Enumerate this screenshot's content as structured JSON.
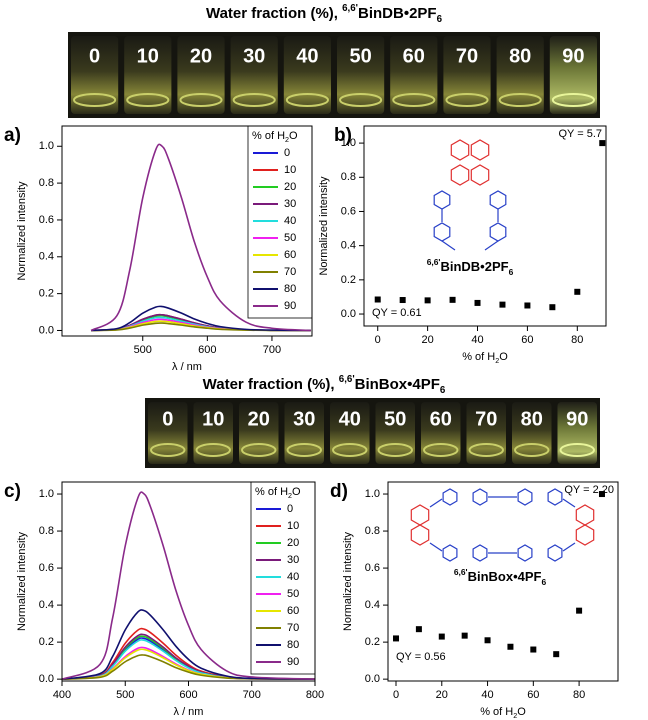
{
  "photos": [
    {
      "title": {
        "prefix": "Water fraction (%), ",
        "sup": "6,6'",
        "name": "BinDB",
        "salt": "•2PF",
        "sub": "6"
      },
      "labels": [
        "0",
        "10",
        "20",
        "30",
        "40",
        "50",
        "60",
        "70",
        "80",
        "90"
      ]
    },
    {
      "title": {
        "prefix": "Water fraction (%), ",
        "sup": "6,6'",
        "name": "BinBox",
        "salt": "•4PF",
        "sub": "6"
      },
      "labels": [
        "0",
        "10",
        "20",
        "30",
        "40",
        "50",
        "60",
        "70",
        "80",
        "90"
      ]
    }
  ],
  "chart_data": [
    {
      "type": "line",
      "panel_label": "a)",
      "xlabel": "λ / nm",
      "ylabel": "Normalized intensity",
      "legend_title": {
        "text": "% of H",
        "sub": "2",
        "end": "O"
      },
      "legend": "upper right",
      "x": [
        420,
        460,
        480,
        500,
        520,
        530,
        540,
        560,
        580,
        600,
        620,
        660,
        700,
        760
      ],
      "xlim": [
        375,
        762
      ],
      "xticks": [
        500,
        600,
        700
      ],
      "ylim": [
        -0.03,
        1.11
      ],
      "yticks": [
        {
          "value": 0,
          "label": "0.0"
        },
        0.2,
        0.4,
        0.6,
        0.8,
        {
          "value": 1,
          "label": "1.0"
        }
      ],
      "series": [
        {
          "name": "0",
          "color": "#1a1ad6",
          "values": [
            0,
            0.006,
            0.026,
            0.058,
            0.078,
            0.08,
            0.074,
            0.058,
            0.038,
            0.023,
            0.013,
            0.004,
            0.001,
            0
          ]
        },
        {
          "name": "10",
          "color": "#e0201e",
          "values": [
            0,
            0.007,
            0.028,
            0.061,
            0.083,
            0.085,
            0.079,
            0.061,
            0.041,
            0.025,
            0.014,
            0.004,
            0.001,
            0
          ]
        },
        {
          "name": "20",
          "color": "#22cc22",
          "values": [
            0,
            0.006,
            0.026,
            0.058,
            0.078,
            0.08,
            0.074,
            0.058,
            0.038,
            0.023,
            0.013,
            0.004,
            0.001,
            0
          ]
        },
        {
          "name": "30",
          "color": "#7a1a7a",
          "values": [
            0,
            0.007,
            0.028,
            0.061,
            0.083,
            0.085,
            0.079,
            0.061,
            0.041,
            0.025,
            0.014,
            0.004,
            0.001,
            0
          ]
        },
        {
          "name": "40",
          "color": "#22dddd",
          "values": [
            0,
            0.006,
            0.023,
            0.05,
            0.069,
            0.07,
            0.065,
            0.05,
            0.034,
            0.02,
            0.011,
            0.003,
            0.001,
            0
          ]
        },
        {
          "name": "50",
          "color": "#f020f0",
          "values": [
            0,
            0.005,
            0.02,
            0.043,
            0.059,
            0.06,
            0.056,
            0.043,
            0.029,
            0.017,
            0.01,
            0.003,
            0.001,
            0
          ]
        },
        {
          "name": "60",
          "color": "#e6e600",
          "values": [
            0,
            0.004,
            0.017,
            0.036,
            0.049,
            0.05,
            0.047,
            0.036,
            0.024,
            0.015,
            0.008,
            0.002,
            0.001,
            0
          ]
        },
        {
          "name": "70",
          "color": "#808000",
          "values": [
            0,
            0.003,
            0.013,
            0.029,
            0.039,
            0.04,
            0.037,
            0.029,
            0.019,
            0.012,
            0.006,
            0.002,
            0,
            0
          ]
        },
        {
          "name": "80",
          "color": "#10106e",
          "values": [
            0,
            0.01,
            0.043,
            0.094,
            0.127,
            0.13,
            0.121,
            0.094,
            0.062,
            0.038,
            0.021,
            0.006,
            0.002,
            0
          ]
        },
        {
          "name": "90",
          "color": "#8a2a8a",
          "values": [
            0,
            0.08,
            0.33,
            0.72,
            0.98,
            1.0,
            0.93,
            0.72,
            0.48,
            0.29,
            0.16,
            0.045,
            0.012,
            0
          ]
        }
      ]
    },
    {
      "type": "scatter",
      "panel_label": "b)",
      "xlabel": {
        "text": "% of H",
        "sub": "2",
        "end": "O"
      },
      "ylabel": "Normalized intensity",
      "compound": {
        "sup": "6,6'",
        "name": "BinDB",
        "salt": "•2PF",
        "sub": "6"
      },
      "qy_high": "QY = 5.7",
      "qy_low": "QY = 0.61",
      "x": [
        0,
        10,
        20,
        30,
        40,
        50,
        60,
        70,
        80,
        90
      ],
      "values": [
        0.085,
        0.082,
        0.08,
        0.083,
        0.065,
        0.055,
        0.05,
        0.04,
        0.13,
        1.0
      ],
      "color": "#000000",
      "xlim": [
        -5.5,
        91.5
      ],
      "xticks": [
        0,
        20,
        40,
        60,
        80
      ],
      "ylim": [
        -0.07,
        1.1
      ],
      "yticks": [
        {
          "value": 0,
          "label": "0.0"
        },
        0.2,
        0.4,
        0.6,
        0.8,
        {
          "value": 1,
          "label": "1.0"
        }
      ]
    },
    {
      "type": "line",
      "panel_label": "c)",
      "xlabel": "λ / nm",
      "ylabel": "Normalized intensity",
      "legend_title": {
        "text": "% of H",
        "sub": "2",
        "end": "O"
      },
      "legend": "upper right",
      "x": [
        400,
        460,
        480,
        500,
        520,
        530,
        540,
        560,
        580,
        600,
        620,
        660,
        700,
        800
      ],
      "xlim": [
        400,
        800
      ],
      "xticks": [
        400,
        500,
        600,
        700,
        800
      ],
      "ylim": [
        -0.01,
        1.065
      ],
      "yticks": [
        {
          "value": 0,
          "label": "0.0"
        },
        0.2,
        0.4,
        0.6,
        0.8,
        {
          "value": 1,
          "label": "1.0"
        }
      ],
      "series": [
        {
          "name": "0",
          "color": "#1a1ad6",
          "values": [
            0,
            0.018,
            0.073,
            0.158,
            0.216,
            0.22,
            0.205,
            0.158,
            0.106,
            0.064,
            0.035,
            0.01,
            0.003,
            0
          ]
        },
        {
          "name": "10",
          "color": "#e0201e",
          "values": [
            0,
            0.022,
            0.089,
            0.194,
            0.265,
            0.27,
            0.251,
            0.194,
            0.13,
            0.078,
            0.043,
            0.012,
            0.003,
            0
          ]
        },
        {
          "name": "20",
          "color": "#22cc22",
          "values": [
            0,
            0.018,
            0.076,
            0.166,
            0.225,
            0.23,
            0.214,
            0.166,
            0.11,
            0.067,
            0.037,
            0.01,
            0.003,
            0
          ]
        },
        {
          "name": "30",
          "color": "#7a1a7a",
          "values": [
            0,
            0.019,
            0.079,
            0.173,
            0.235,
            0.24,
            0.223,
            0.173,
            0.115,
            0.07,
            0.038,
            0.011,
            0.003,
            0
          ]
        },
        {
          "name": "40",
          "color": "#22dddd",
          "values": [
            0,
            0.017,
            0.069,
            0.151,
            0.206,
            0.21,
            0.195,
            0.151,
            0.101,
            0.061,
            0.034,
            0.009,
            0.003,
            0
          ]
        },
        {
          "name": "50",
          "color": "#f020f0",
          "values": [
            0,
            0.014,
            0.056,
            0.122,
            0.167,
            0.17,
            0.158,
            0.122,
            0.082,
            0.049,
            0.027,
            0.008,
            0.002,
            0
          ]
        },
        {
          "name": "60",
          "color": "#e6e600",
          "values": [
            0,
            0.013,
            0.053,
            0.115,
            0.157,
            0.16,
            0.149,
            0.115,
            0.077,
            0.046,
            0.026,
            0.007,
            0.002,
            0
          ]
        },
        {
          "name": "70",
          "color": "#808000",
          "values": [
            0,
            0.01,
            0.043,
            0.094,
            0.127,
            0.13,
            0.121,
            0.094,
            0.062,
            0.038,
            0.021,
            0.006,
            0.002,
            0
          ]
        },
        {
          "name": "80",
          "color": "#10106e",
          "values": [
            0,
            0.03,
            0.122,
            0.266,
            0.363,
            0.37,
            0.344,
            0.266,
            0.178,
            0.107,
            0.059,
            0.017,
            0.004,
            0
          ]
        },
        {
          "name": "90",
          "color": "#8a2a8a",
          "values": [
            0,
            0.08,
            0.33,
            0.72,
            0.98,
            1.0,
            0.93,
            0.72,
            0.48,
            0.29,
            0.16,
            0.045,
            0.012,
            0
          ]
        }
      ]
    },
    {
      "type": "scatter",
      "panel_label": "d)",
      "xlabel": {
        "text": "% of H",
        "sub": "2",
        "end": "O"
      },
      "ylabel": "Normalized intensity",
      "compound": {
        "sup": "6,6'",
        "name": "BinBox",
        "salt": "•4PF",
        "sub": "6"
      },
      "qy_high": "QY = 2.20",
      "qy_low": "QY = 0.56",
      "x": [
        0,
        10,
        20,
        30,
        40,
        50,
        60,
        70,
        80,
        90
      ],
      "values": [
        0.22,
        0.27,
        0.23,
        0.235,
        0.21,
        0.175,
        0.16,
        0.135,
        0.37,
        1.0
      ],
      "color": "#000000",
      "xlim": [
        -3.5,
        97
      ],
      "xticks": [
        0,
        20,
        40,
        60,
        80
      ],
      "ylim": [
        -0.01,
        1.065
      ],
      "yticks": [
        {
          "value": 0,
          "label": "0.0"
        },
        0.2,
        0.4,
        0.6,
        0.8,
        {
          "value": 1,
          "label": "1.0"
        }
      ]
    }
  ]
}
